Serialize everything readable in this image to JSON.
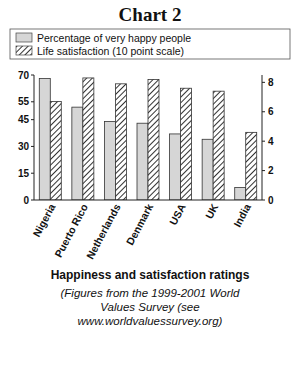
{
  "chart_data": {
    "type": "bar",
    "title": "Chart 2",
    "caption": "Happiness and satisfaction ratings",
    "subtitle": "(Figures from the 1999-2001 World Values Survey (see www.worldvaluessurvey.org)",
    "categories": [
      "Nigeria",
      "Puerto Rico",
      "Netherlands",
      "Denmark",
      "USA",
      "UK",
      "India"
    ],
    "series": [
      {
        "name": "Percentage of very happy people",
        "color": "#d6d6d6",
        "values": [
          68,
          52,
          44,
          43,
          37,
          34,
          7
        ]
      },
      {
        "name": "Life satisfaction (10 point scale)",
        "color": "#333333",
        "axis": "y2",
        "values": [
          6.7,
          8.3,
          7.9,
          8.2,
          7.6,
          7.4,
          4.6
        ]
      }
    ],
    "ylim": [
      0,
      70
    ],
    "yticks": [
      0,
      15,
      30,
      45,
      55,
      70
    ],
    "y2lim": [
      0,
      8.5
    ],
    "y2ticks": [
      0,
      2,
      4,
      6,
      8
    ],
    "legend": "top",
    "grid": false
  }
}
